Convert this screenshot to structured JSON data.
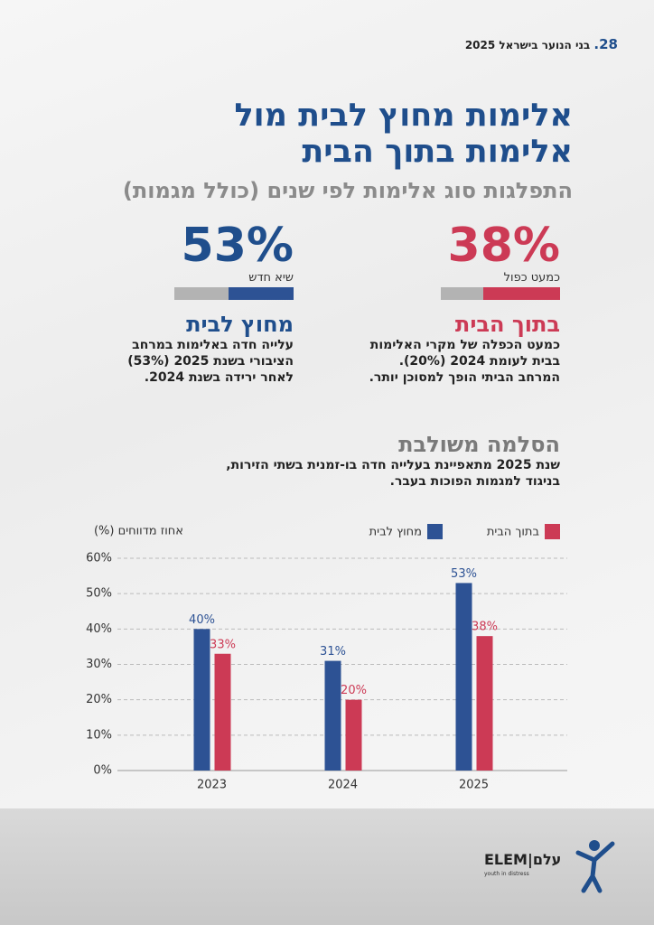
{
  "header": {
    "page_number": "28.",
    "running_title": "בני הנוער בישראל 2025"
  },
  "title_lines": [
    "אלימות מחוץ לבית מול",
    "אלימות בתוך הבית"
  ],
  "subtitle": "התפלגות סוג אלימות לפי שנים (כולל מגמות)",
  "stats": [
    {
      "figure": "38%",
      "caption": "כמעט כפול",
      "heading": "בתוך הבית",
      "text_lines": [
        "כמעט הכפלה של מקרי האלימות",
        "בבית לעומת 2024 (20%).",
        "המרחב הביתי הופך למסוכן יותר."
      ]
    },
    {
      "figure": "53%",
      "caption": "שיא חדש",
      "heading": "מחוץ לבית",
      "text_lines": [
        "עלייה חדה באלימות במרחב",
        "הציבורי בשנת 2025 (53%)",
        "לאחר ירידה בשנת 2024."
      ]
    }
  ],
  "section": {
    "heading": "הסלמה משולבת",
    "text_lines": [
      "שנת 2025 מתאפיינת בעלייה חדה בו-זמנית בשתי הזירות,",
      "בניגוד למגמות הפוכות בעבר."
    ]
  },
  "chart_data": {
    "type": "bar",
    "y_label": "אחוז מדווחים (%)",
    "categories": [
      "2023",
      "2024",
      "2025"
    ],
    "series": [
      {
        "name": "מחוץ לבית",
        "color": "#2d5294",
        "values": [
          40,
          31,
          53
        ],
        "value_labels": [
          "40%",
          "31%",
          "53%"
        ]
      },
      {
        "name": "בתוך הבית",
        "color": "#cc3a55",
        "values": [
          33,
          20,
          38
        ],
        "value_labels": [
          "33%",
          "20%",
          "38%"
        ]
      }
    ],
    "ylim": [
      0,
      60
    ],
    "yticks": [
      {
        "value": 0,
        "label": "0%"
      },
      {
        "value": 10,
        "label": "10%"
      },
      {
        "value": 20,
        "label": "20%"
      },
      {
        "value": 30,
        "label": "30%"
      },
      {
        "value": 40,
        "label": "40%"
      },
      {
        "value": 50,
        "label": "50%"
      },
      {
        "value": 60,
        "label": "60%"
      }
    ],
    "grid": true
  },
  "logo": {
    "latin": "ELEM",
    "hebrew": "עלם",
    "tagline": "youth in distress"
  }
}
